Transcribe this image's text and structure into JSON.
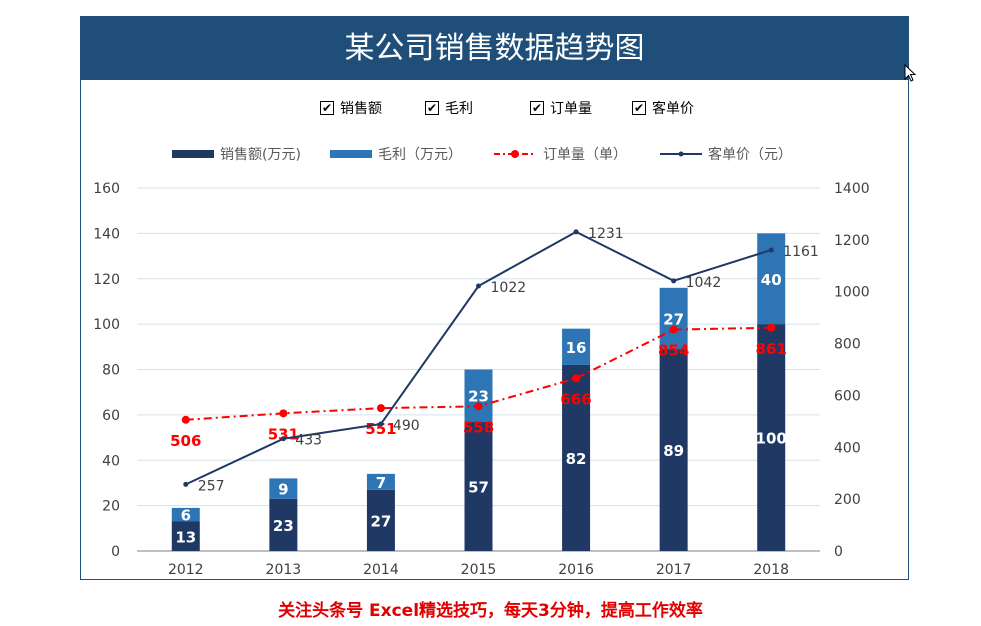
{
  "title": "某公司销售数据趋势图",
  "checkboxes": [
    {
      "label": "销售额",
      "checked": true,
      "mark": "✔"
    },
    {
      "label": "毛利",
      "checked": true,
      "mark": "✔"
    },
    {
      "label": "订单量",
      "checked": true,
      "mark": "✔"
    },
    {
      "label": "客单价",
      "checked": true,
      "mark": "✔"
    }
  ],
  "footer": "关注头条号 Excel精选技巧，每天3分钟，提高工作效率",
  "colors": {
    "header": "#1f4e79",
    "sales": "#203864",
    "profit": "#2e75b6",
    "orders": "#ff0000",
    "avg_price": "#203864"
  },
  "chart_data": {
    "type": "bar",
    "title": "某公司销售数据趋势图",
    "categories": [
      "2012",
      "2013",
      "2014",
      "2015",
      "2016",
      "2017",
      "2018"
    ],
    "series": [
      {
        "name": "销售额(万元)",
        "type": "stacked-bar",
        "axis": "left",
        "values": [
          13,
          23,
          27,
          57,
          82,
          89,
          100
        ]
      },
      {
        "name": "毛利（万元）",
        "type": "stacked-bar",
        "axis": "left",
        "values": [
          6,
          9,
          7,
          23,
          16,
          27,
          40
        ]
      },
      {
        "name": "订单量（单）",
        "type": "line-dashdot",
        "axis": "right",
        "values": [
          506,
          531,
          551,
          558,
          666,
          854,
          861
        ]
      },
      {
        "name": "客单价（元）",
        "type": "line",
        "axis": "right",
        "values": [
          257,
          433,
          490,
          1022,
          1231,
          1042,
          1161
        ]
      }
    ],
    "ylim": [
      0,
      160
    ],
    "y_ticks": [
      "0",
      "20",
      "40",
      "60",
      "80",
      "100",
      "120",
      "140",
      "160"
    ],
    "y2lim": [
      0,
      1400
    ],
    "y2_ticks": [
      "0",
      "200",
      "400",
      "600",
      "800",
      "1000",
      "1200",
      "1400"
    ],
    "grid": true,
    "legend_position": "top"
  }
}
